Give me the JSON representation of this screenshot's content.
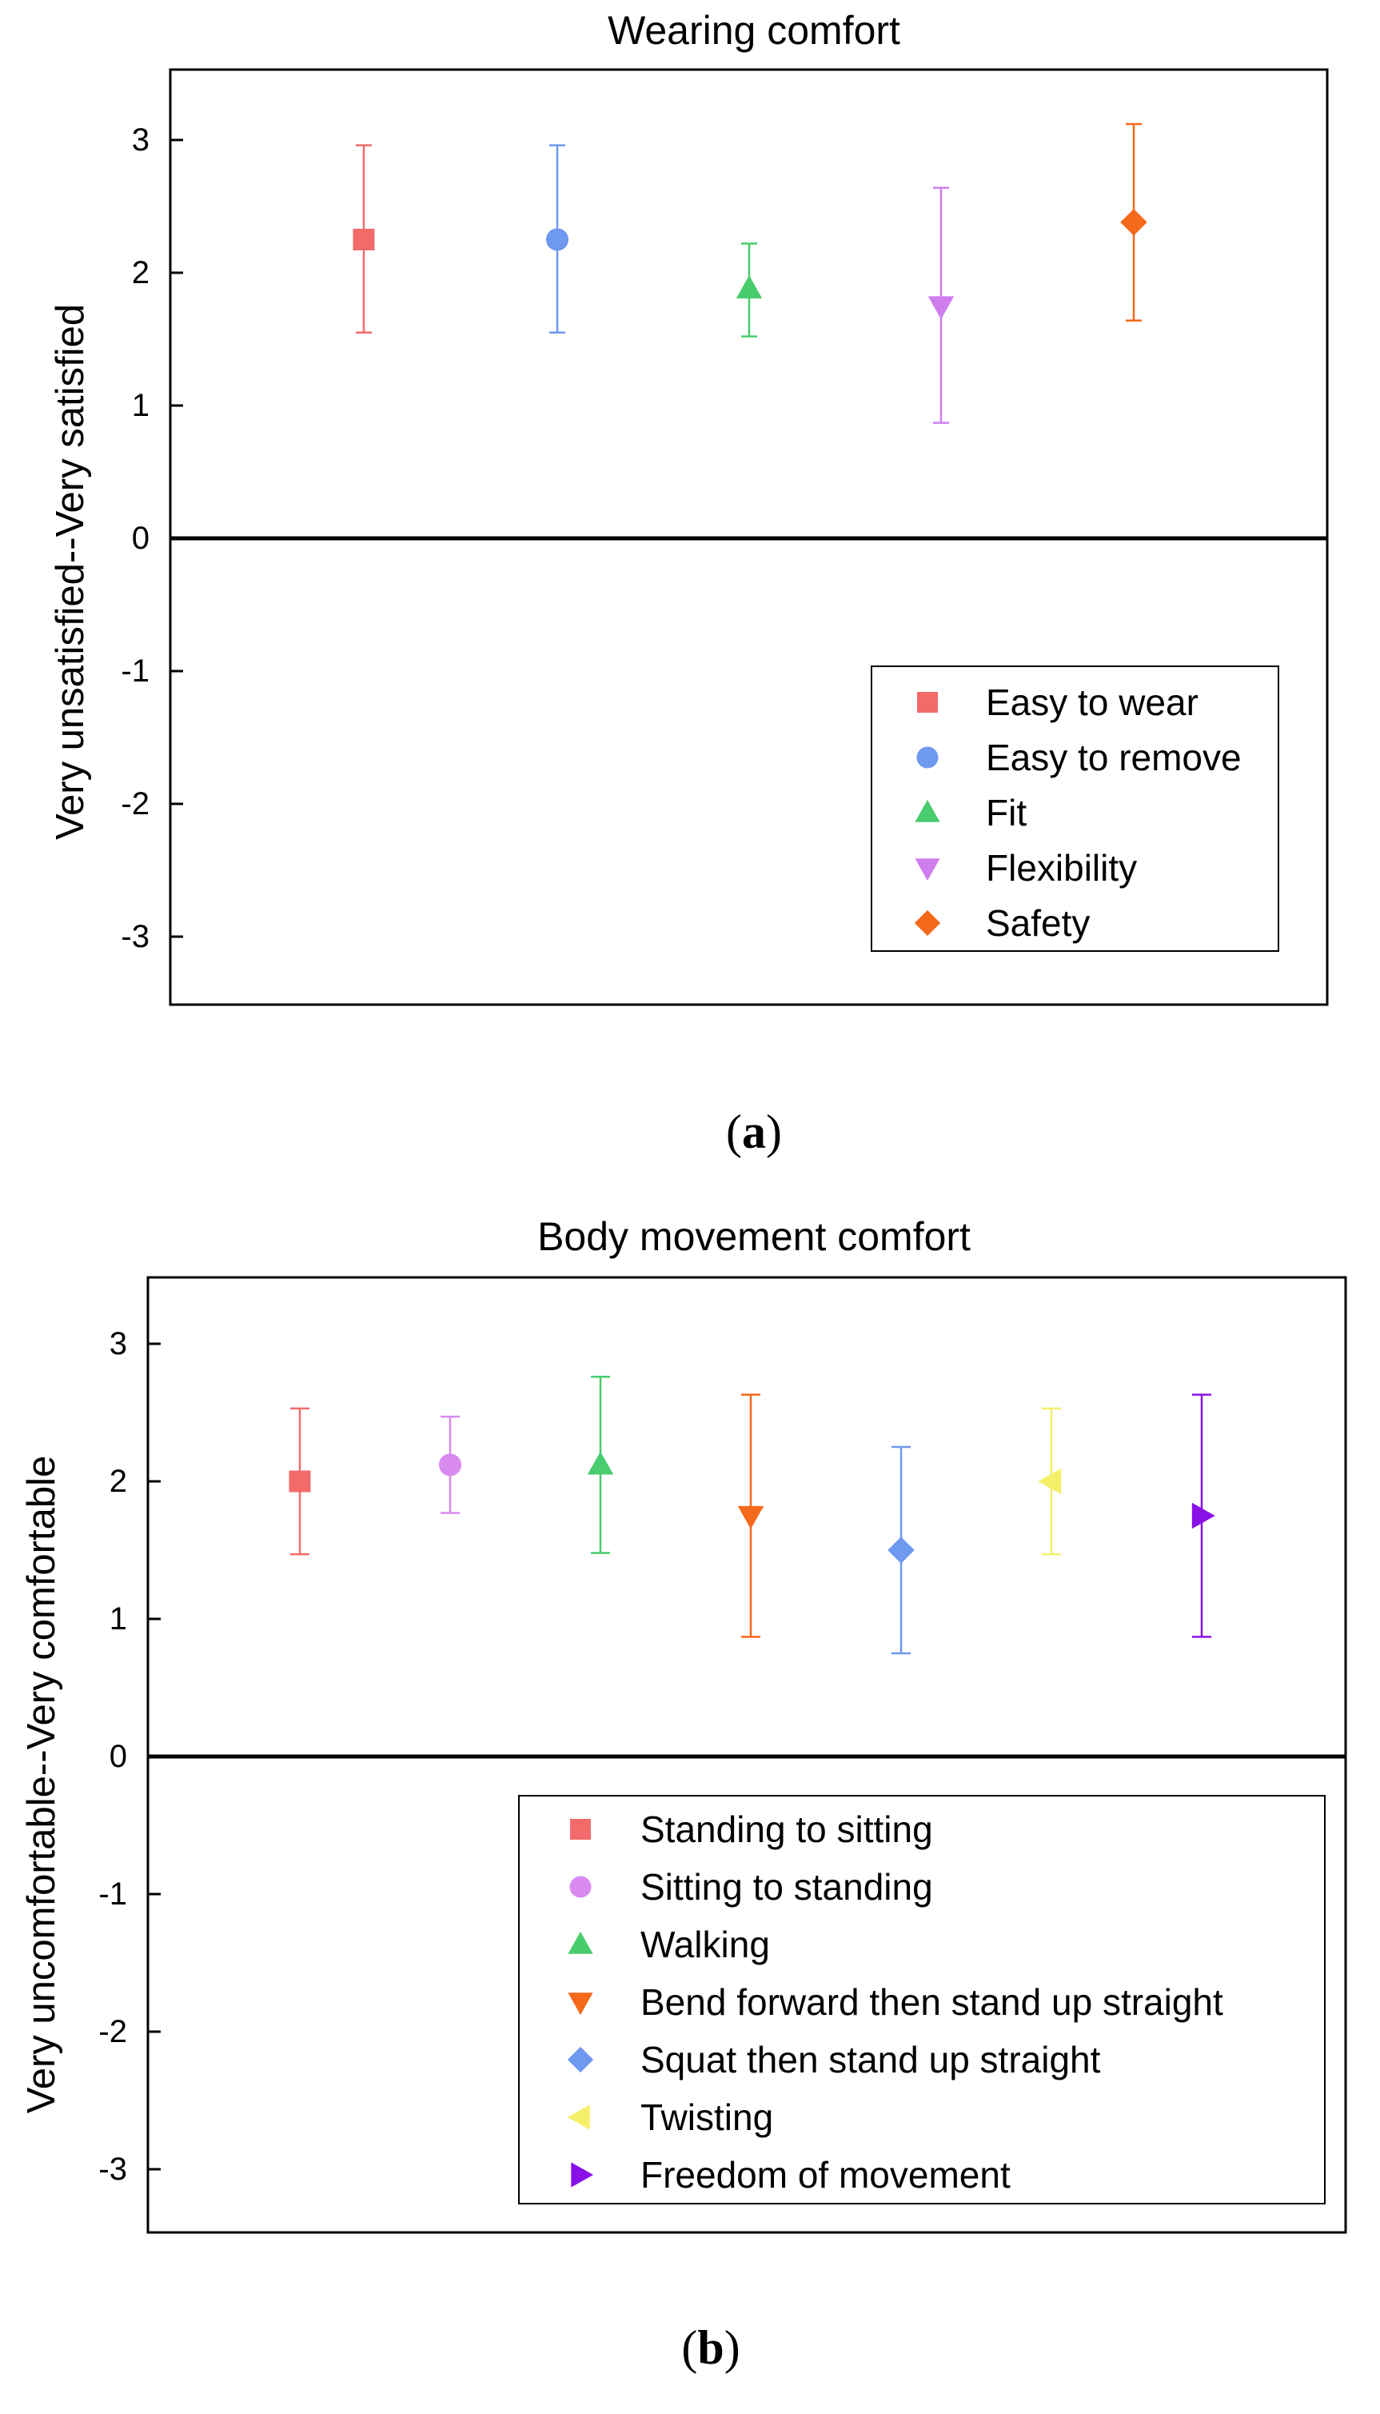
{
  "chart_data": [
    {
      "type": "scatter",
      "panel_label_open": "(",
      "panel_label_letter": "a",
      "panel_label_close": ")",
      "title": "Wearing comfort",
      "xlabel": "",
      "ylabel": "Very unsatisfied--Very satisfied",
      "ylim": [
        -3.5,
        3.5
      ],
      "yticks": [
        "3",
        "2",
        "1",
        "0",
        "-1",
        "-2",
        "-3"
      ],
      "ytick_values": [
        3,
        2,
        1,
        0,
        -1,
        -2,
        -3
      ],
      "baseline": 0,
      "legend_position": "lower-right",
      "series": [
        {
          "name": "Easy to wear",
          "marker": "square",
          "color": "#f26a6a",
          "mean": 2.25,
          "low": 1.55,
          "high": 2.96
        },
        {
          "name": "Easy to remove",
          "marker": "circle",
          "color": "#6f98ef",
          "mean": 2.25,
          "low": 1.55,
          "high": 2.96
        },
        {
          "name": "Fit",
          "marker": "triangle-up",
          "color": "#49cc6d",
          "mean": 1.88,
          "low": 1.52,
          "high": 2.22
        },
        {
          "name": "Flexibility",
          "marker": "triangle-down",
          "color": "#cf7ef0",
          "mean": 1.75,
          "low": 0.87,
          "high": 2.64
        },
        {
          "name": "Safety",
          "marker": "diamond",
          "color": "#f5691b",
          "mean": 2.38,
          "low": 1.64,
          "high": 3.12
        }
      ]
    },
    {
      "type": "scatter",
      "panel_label_open": "(",
      "panel_label_letter": "b",
      "panel_label_close": ")",
      "title": "Body movement comfort",
      "xlabel": "",
      "ylabel": "Very uncomfortable--Very comfortable",
      "ylim": [
        -3.5,
        3.5
      ],
      "yticks": [
        "3",
        "2",
        "1",
        "0",
        "-1",
        "-2",
        "-3"
      ],
      "ytick_values": [
        3,
        2,
        1,
        0,
        -1,
        -2,
        -3
      ],
      "baseline": 0,
      "legend_position": "lower-right",
      "series": [
        {
          "name": "Standing to sitting",
          "marker": "square",
          "color": "#f26a6a",
          "mean": 2.0,
          "low": 1.47,
          "high": 2.53
        },
        {
          "name": "Sitting to standing",
          "marker": "circle",
          "color": "#d88af0",
          "mean": 2.12,
          "low": 1.77,
          "high": 2.47
        },
        {
          "name": "Walking",
          "marker": "triangle-up",
          "color": "#49cc6d",
          "mean": 2.12,
          "low": 1.48,
          "high": 2.76
        },
        {
          "name": "Bend forward then stand up straight",
          "marker": "triangle-down",
          "color": "#f5691b",
          "mean": 1.75,
          "low": 0.87,
          "high": 2.63
        },
        {
          "name": "Squat then stand up straight",
          "marker": "diamond",
          "color": "#6f98ef",
          "mean": 1.5,
          "low": 0.75,
          "high": 2.25
        },
        {
          "name": "Twisting",
          "marker": "triangle-left",
          "color": "#f5f06a",
          "mean": 2.0,
          "low": 1.47,
          "high": 2.53
        },
        {
          "name": "Freedom of movement",
          "marker": "triangle-right",
          "color": "#8a10e8",
          "mean": 1.75,
          "low": 0.87,
          "high": 2.63
        }
      ]
    }
  ]
}
